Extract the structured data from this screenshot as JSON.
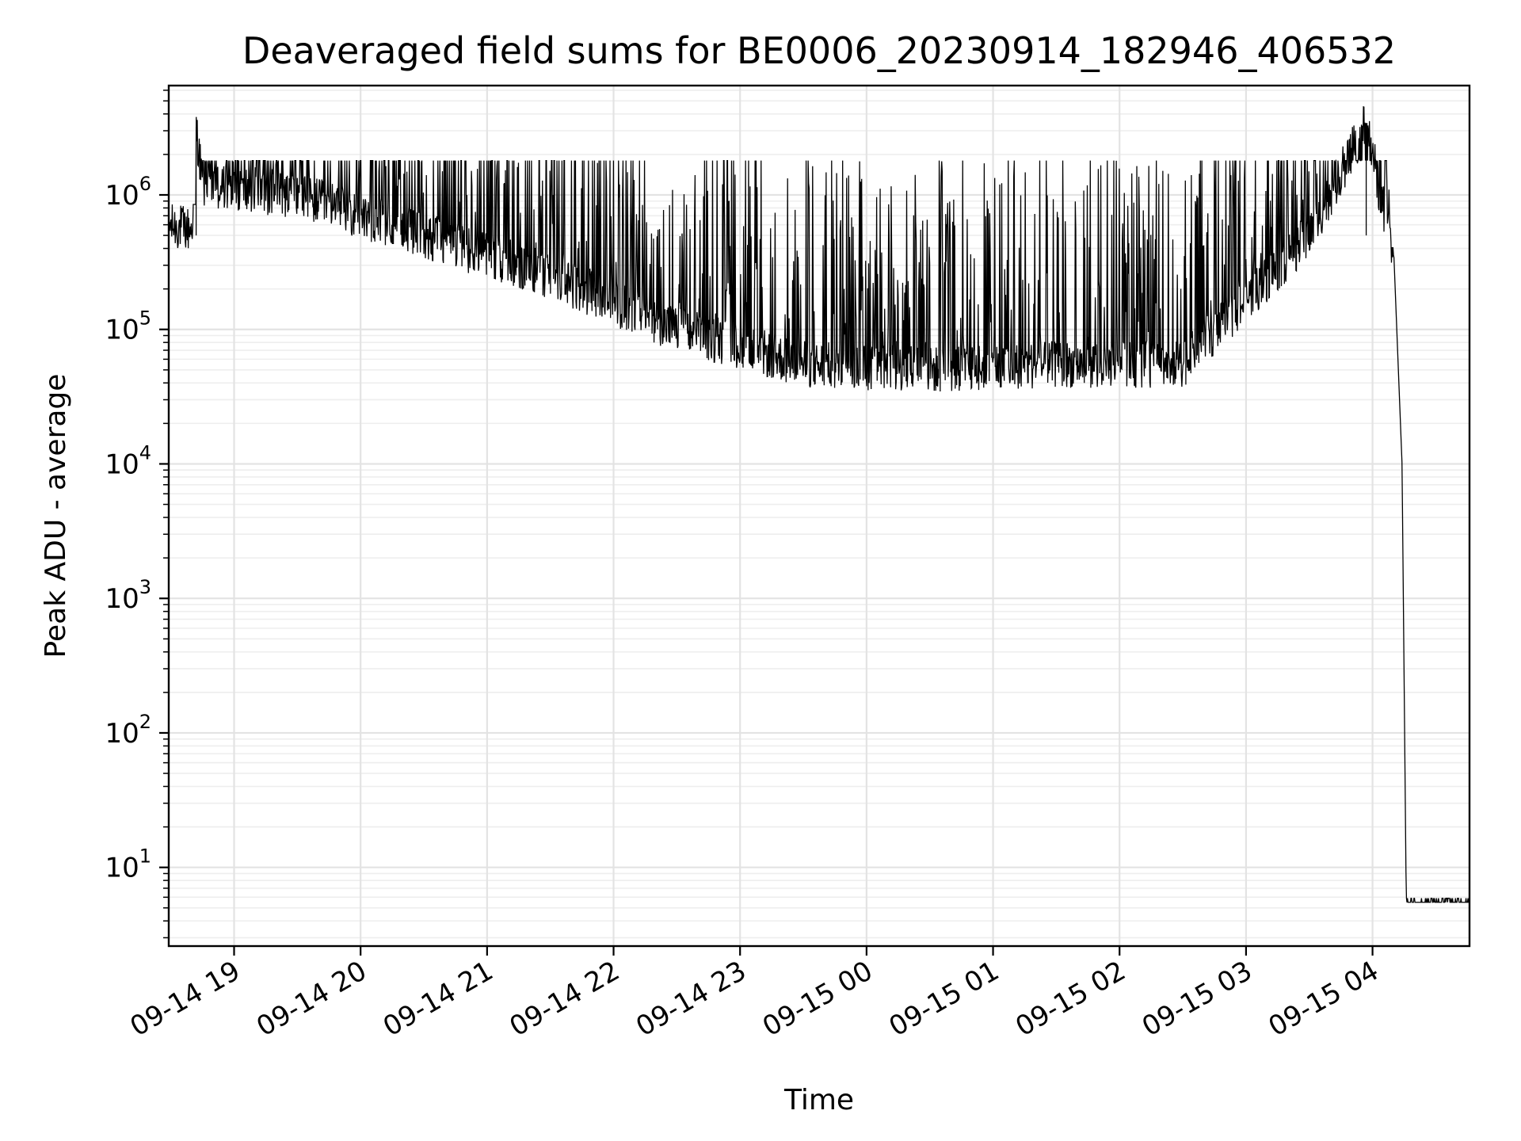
{
  "chart_data": {
    "type": "line",
    "title": "Deaveraged field sums for BE0006_20230914_182946_406532",
    "xlabel": "Time",
    "ylabel": "Peak ADU - average",
    "yscale": "log",
    "ylim": [
      2.6,
      6500000
    ],
    "xlim": [
      "09-14 18:29",
      "09-15 04:46"
    ],
    "grid": "on",
    "legend": "none",
    "line_color": "#000000",
    "x_tick_labels": [
      "09-14 19",
      "09-14 20",
      "09-14 21",
      "09-14 22",
      "09-14 23",
      "09-15 00",
      "09-15 01",
      "09-15 02",
      "09-15 03",
      "09-15 04"
    ],
    "y_ticks": [
      {
        "value": 10,
        "base": "10",
        "exp": "1"
      },
      {
        "value": 100,
        "base": "10",
        "exp": "2"
      },
      {
        "value": 1000,
        "base": "10",
        "exp": "3"
      },
      {
        "value": 10000,
        "base": "10",
        "exp": "4"
      },
      {
        "value": 100000,
        "base": "10",
        "exp": "5"
      },
      {
        "value": 1000000,
        "base": "10",
        "exp": "6"
      }
    ],
    "series": [
      {
        "description_points": [
          {
            "x": "09-14 18:29",
            "y": 600000
          },
          {
            "x": "09-14 18:40",
            "y": 550000
          },
          {
            "x": "09-14 18:42",
            "y": 3200000
          },
          {
            "x": "09-14 18:45",
            "y": 1200000
          },
          {
            "x": "09-14 19:30",
            "y": 1000000
          },
          {
            "x": "09-14 20:30",
            "y": 500000
          },
          {
            "x": "09-14 21:30",
            "y": 250000
          },
          {
            "x": "09-14 22:30",
            "y": 100000
          },
          {
            "x": "09-14 23:30",
            "y": 55000
          },
          {
            "x": "09-15 00:30",
            "y": 50000
          },
          {
            "x": "09-15 01:30",
            "y": 55000
          },
          {
            "x": "09-15 02:30",
            "y": 55000
          },
          {
            "x": "09-15 03:30",
            "y": 500000
          },
          {
            "x": "09-15 03:57",
            "y": 3400000
          },
          {
            "x": "09-15 04:05",
            "y": 800000
          },
          {
            "x": "09-15 04:10",
            "y": 400000
          },
          {
            "x": "09-15 04:14",
            "y": 10000
          },
          {
            "x": "09-15 04:16",
            "y": 5.5
          },
          {
            "x": "09-15 04:46",
            "y": 5.5
          }
        ]
      }
    ]
  }
}
